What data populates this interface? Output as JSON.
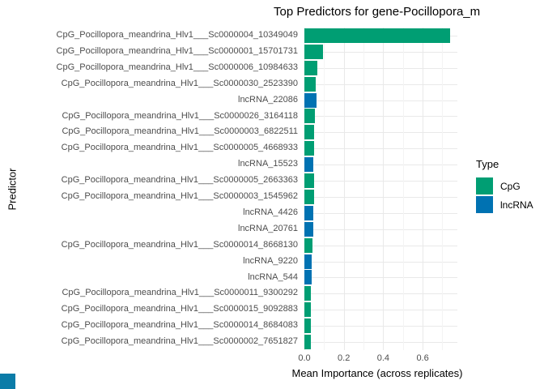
{
  "chart_data": {
    "type": "bar",
    "orientation": "horizontal",
    "title": "Top Predictors for gene-Pocillopora_m",
    "xlabel": "Mean Importance (across replicates)",
    "ylabel": "Predictor",
    "xlim": [
      0,
      0.776
    ],
    "x_ticks": [
      0.0,
      0.2,
      0.4,
      0.6
    ],
    "x_tick_labels": [
      "0.0",
      "0.2",
      "0.4",
      "0.6"
    ],
    "x_minor_ticks": [
      0.1,
      0.3,
      0.5,
      0.7
    ],
    "grid": true,
    "legend": {
      "title": "Type",
      "position": "right",
      "entries": [
        {
          "label": "CpG",
          "color": "#009E73"
        },
        {
          "label": "lncRNA",
          "color": "#0072B2"
        }
      ]
    },
    "bars": [
      {
        "label": "CpG_Pocillopora_meandrina_Hlv1___Sc0000004_10349049",
        "type": "CpG",
        "value": 0.74
      },
      {
        "label": "CpG_Pocillopora_meandrina_Hlv1___Sc0000001_15701731",
        "type": "CpG",
        "value": 0.095
      },
      {
        "label": "CpG_Pocillopora_meandrina_Hlv1___Sc0000006_10984633",
        "type": "CpG",
        "value": 0.066
      },
      {
        "label": "CpG_Pocillopora_meandrina_Hlv1___Sc0000030_2523390",
        "type": "CpG",
        "value": 0.058
      },
      {
        "label": "lncRNA_22086",
        "type": "lncRNA",
        "value": 0.061
      },
      {
        "label": "CpG_Pocillopora_meandrina_Hlv1___Sc0000026_3164118",
        "type": "CpG",
        "value": 0.052
      },
      {
        "label": "CpG_Pocillopora_meandrina_Hlv1___Sc0000003_6822511",
        "type": "CpG",
        "value": 0.049
      },
      {
        "label": "CpG_Pocillopora_meandrina_Hlv1___Sc0000005_4668933",
        "type": "CpG",
        "value": 0.049
      },
      {
        "label": "lncRNA_15523",
        "type": "lncRNA",
        "value": 0.046
      },
      {
        "label": "CpG_Pocillopora_meandrina_Hlv1___Sc0000005_2663363",
        "type": "CpG",
        "value": 0.048
      },
      {
        "label": "CpG_Pocillopora_meandrina_Hlv1___Sc0000003_1545962",
        "type": "CpG",
        "value": 0.048
      },
      {
        "label": "lncRNA_4426",
        "type": "lncRNA",
        "value": 0.046
      },
      {
        "label": "lncRNA_20761",
        "type": "lncRNA",
        "value": 0.046
      },
      {
        "label": "CpG_Pocillopora_meandrina_Hlv1___Sc0000014_8668130",
        "type": "CpG",
        "value": 0.04
      },
      {
        "label": "lncRNA_9220",
        "type": "lncRNA",
        "value": 0.038
      },
      {
        "label": "lncRNA_544",
        "type": "lncRNA",
        "value": 0.038
      },
      {
        "label": "CpG_Pocillopora_meandrina_Hlv1___Sc0000011_9300292",
        "type": "CpG",
        "value": 0.033
      },
      {
        "label": "CpG_Pocillopora_meandrina_Hlv1___Sc0000015_9092883",
        "type": "CpG",
        "value": 0.033
      },
      {
        "label": "CpG_Pocillopora_meandrina_Hlv1___Sc0000014_8684083",
        "type": "CpG",
        "value": 0.033
      },
      {
        "label": "CpG_Pocillopora_meandrina_Hlv1___Sc0000002_7651827",
        "type": "CpG",
        "value": 0.032
      }
    ]
  },
  "colors": {
    "CpG": "#009E73",
    "lncRNA": "#0072B2",
    "grid_major": "#E9E9E9",
    "grid_minor": "#F4F4F4",
    "tick_text": "#4D4D4D",
    "corner_artifact": "#0B7CA8"
  }
}
